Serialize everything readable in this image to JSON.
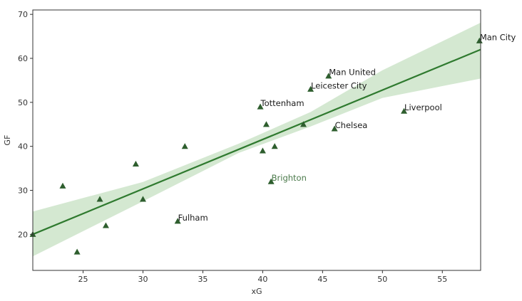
{
  "chart_data": {
    "type": "scatter",
    "xlabel": "xG",
    "ylabel": "GF",
    "xlim": [
      20.8,
      58.2
    ],
    "ylim": [
      11.8,
      71.0
    ],
    "xticks": [
      25,
      30,
      35,
      40,
      45,
      50,
      55
    ],
    "yticks": [
      20,
      30,
      40,
      50,
      60,
      70
    ],
    "grid": false,
    "marker": "triangle",
    "colors": {
      "marker": "#2e5e2e",
      "regression_line": "#2f7a2f",
      "confidence_band": "#cfe6cc",
      "label_default": "#1a1a1a",
      "label_highlight": "#4b7a4b"
    },
    "points": [
      {
        "x": 20.8,
        "y": 20,
        "label": ""
      },
      {
        "x": 23.3,
        "y": 31,
        "label": ""
      },
      {
        "x": 24.5,
        "y": 16,
        "label": ""
      },
      {
        "x": 26.4,
        "y": 28,
        "label": ""
      },
      {
        "x": 26.9,
        "y": 22,
        "label": ""
      },
      {
        "x": 29.4,
        "y": 36,
        "label": ""
      },
      {
        "x": 30.0,
        "y": 28,
        "label": ""
      },
      {
        "x": 32.9,
        "y": 23,
        "label": "Fulham"
      },
      {
        "x": 33.5,
        "y": 40,
        "label": ""
      },
      {
        "x": 39.8,
        "y": 49,
        "label": "Tottenham"
      },
      {
        "x": 40.0,
        "y": 39,
        "label": ""
      },
      {
        "x": 40.3,
        "y": 45,
        "label": ""
      },
      {
        "x": 40.7,
        "y": 32,
        "label": "Brighton",
        "highlight": true
      },
      {
        "x": 41.0,
        "y": 40,
        "label": ""
      },
      {
        "x": 43.4,
        "y": 45,
        "label": ""
      },
      {
        "x": 44.0,
        "y": 53,
        "label": "Leicester City"
      },
      {
        "x": 45.5,
        "y": 56,
        "label": "Man United"
      },
      {
        "x": 46.0,
        "y": 44,
        "label": "Chelsea"
      },
      {
        "x": 51.8,
        "y": 48,
        "label": "Liverpool"
      },
      {
        "x": 58.1,
        "y": 64,
        "label": "Man City"
      }
    ],
    "regression": {
      "line": [
        [
          20.8,
          20.0
        ],
        [
          58.2,
          62.0
        ]
      ],
      "ci_upper": [
        [
          20.8,
          25.2
        ],
        [
          30,
          31.9
        ],
        [
          38,
          40.6
        ],
        [
          44,
          47.8
        ],
        [
          50,
          57.3
        ],
        [
          58.2,
          68.1
        ]
      ],
      "ci_lower": [
        [
          20.8,
          15.0
        ],
        [
          30,
          27.5
        ],
        [
          38,
          38.5
        ],
        [
          44,
          44.5
        ],
        [
          50,
          51.0
        ],
        [
          58.2,
          55.4
        ]
      ]
    }
  }
}
